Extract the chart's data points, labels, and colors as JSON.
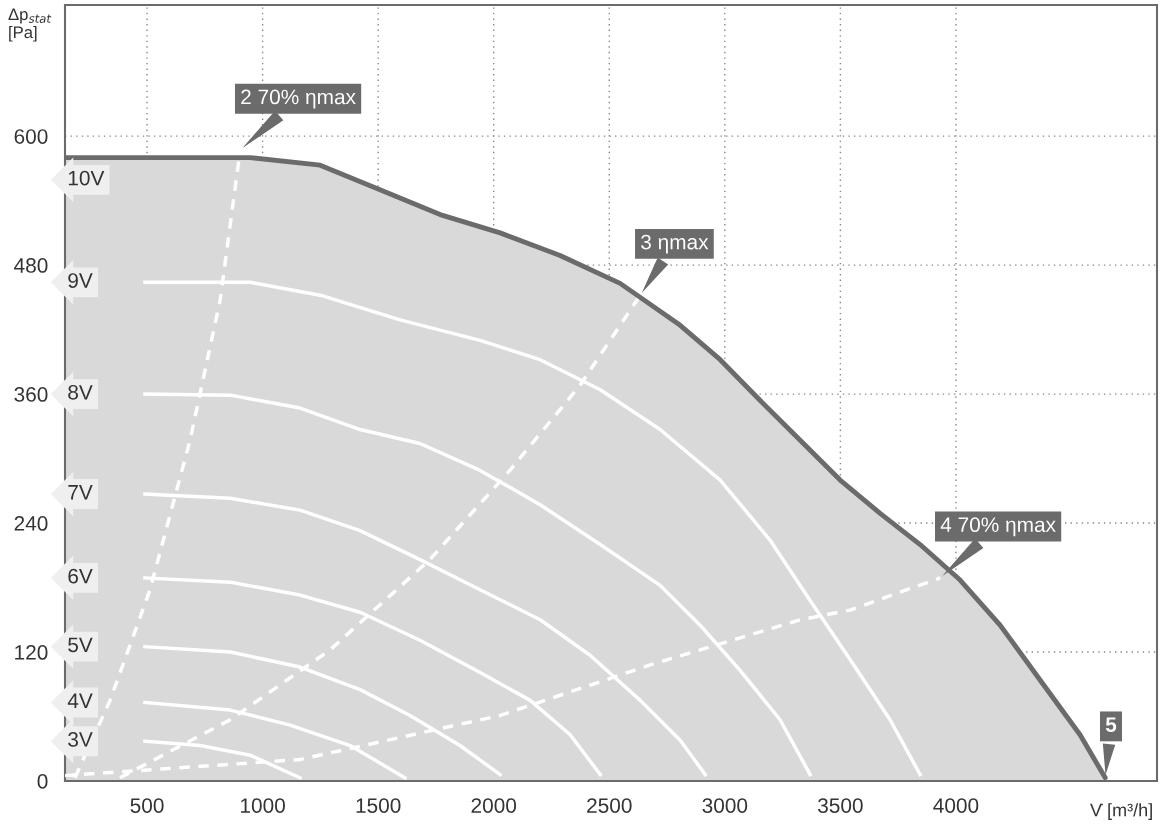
{
  "chart_data": {
    "type": "line",
    "xlabel": "V̇ [m³/h]",
    "ylabel": "Δp$_{stat}$\n[Pa]",
    "xlim": [
      145,
      4870
    ],
    "ylim": [
      0,
      722
    ],
    "xticks": [
      500,
      1000,
      1500,
      2000,
      2500,
      3000,
      3500,
      4000
    ],
    "yticks": [
      0,
      120,
      240,
      360,
      480,
      600
    ],
    "grid": true,
    "marker": "none",
    "series": [
      {
        "name": "10V",
        "type": "area",
        "color": "#d9d9d9",
        "x": [
          145,
          946,
          1249,
          1508,
          1768,
          2028,
          2287,
          2547,
          2807,
          2980,
          3153,
          3326,
          3499,
          3672,
          3845,
          4018,
          4191,
          4364,
          4537,
          4646
        ],
        "values": [
          580,
          580,
          573,
          550,
          527,
          510,
          489,
          463,
          424,
          392,
          354,
          317,
          280,
          249,
          220,
          187,
          145,
          94,
          43,
          3
        ]
      },
      {
        "name": "9V",
        "color": "#ffffff",
        "x": [
          491,
          946,
          1249,
          1595,
          1941,
          2201,
          2461,
          2720,
          2980,
          3196,
          3369,
          3542,
          3715,
          3845
        ],
        "values": [
          464,
          464,
          452,
          429,
          410,
          392,
          364,
          327,
          280,
          224,
          168,
          113,
          57,
          6
        ]
      },
      {
        "name": "8V",
        "color": "#ffffff",
        "x": [
          491,
          860,
          1162,
          1422,
          1681,
          1941,
          2201,
          2461,
          2720,
          2893,
          3066,
          3239,
          3369
        ],
        "values": [
          360,
          359,
          347,
          327,
          314,
          289,
          257,
          220,
          182,
          145,
          103,
          57,
          6
        ]
      },
      {
        "name": "7V",
        "color": "#ffffff",
        "x": [
          491,
          860,
          1162,
          1422,
          1681,
          1941,
          2201,
          2417,
          2634,
          2807,
          2915
        ],
        "values": [
          267,
          263,
          252,
          233,
          206,
          178,
          150,
          117,
          75,
          38,
          6
        ]
      },
      {
        "name": "6V",
        "color": "#ffffff",
        "x": [
          491,
          860,
          1162,
          1422,
          1681,
          1941,
          2158,
          2331,
          2461
        ],
        "values": [
          189,
          185,
          173,
          157,
          131,
          101,
          75,
          43,
          6
        ]
      },
      {
        "name": "5V",
        "color": "#ffffff",
        "x": [
          491,
          860,
          1162,
          1422,
          1638,
          1854,
          2028
        ],
        "values": [
          125,
          120,
          106,
          85,
          61,
          33,
          6
        ]
      },
      {
        "name": "4V",
        "color": "#ffffff",
        "x": [
          491,
          860,
          1119,
          1379,
          1616
        ],
        "values": [
          73,
          66,
          52,
          33,
          3
        ]
      },
      {
        "name": "3V",
        "color": "#ffffff",
        "x": [
          491,
          730,
          946,
          1162
        ],
        "values": [
          37,
          33,
          24,
          3
        ]
      },
      {
        "color": "#ffffff",
        "line_style": "dashed",
        "x": [
          188,
          340,
          513,
          686,
          816,
          903
        ],
        "values": [
          3,
          75,
          178,
          317,
          447,
          587
        ]
      },
      {
        "color": "#ffffff",
        "line_style": "dashed",
        "x": [
          383,
          860,
          1292,
          1724,
          2070,
          2373,
          2634
        ],
        "values": [
          3,
          57,
          122,
          206,
          289,
          368,
          452
        ]
      },
      {
        "color": "#ffffff",
        "line_style": "dashed",
        "x": [
          145,
          1162,
          2028,
          2677,
          2893,
          3326,
          3542,
          3932
        ],
        "values": [
          5,
          20,
          61,
          108,
          122,
          150,
          159,
          189
        ]
      }
    ],
    "annotations": [
      {
        "text": "2 70% ηmax",
        "x": 903,
        "y": 587
      },
      {
        "text": "3 ηmax",
        "x": 2634,
        "y": 452
      },
      {
        "text": "4 70% ηmax",
        "x": 3932,
        "y": 189
      },
      {
        "text": "5",
        "x": 4646,
        "y": 3
      }
    ]
  }
}
